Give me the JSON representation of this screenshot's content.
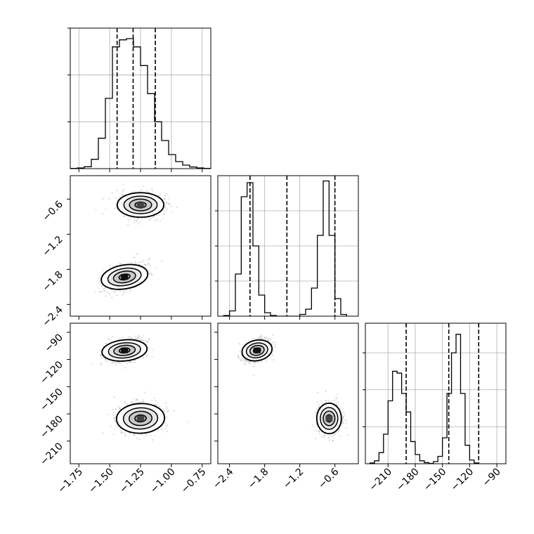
{
  "chart_data": {
    "type": "corner",
    "params": [
      {
        "ticks": [
          -1.75,
          -1.5,
          -1.25,
          -1.0,
          -0.75
        ],
        "tick_labels": [
          "−1.75",
          "−1.50",
          "−1.25",
          "−1.00",
          "−0.75"
        ],
        "range": [
          -1.82,
          -0.68
        ],
        "quantiles": [
          -1.44,
          -1.31,
          -1.13
        ],
        "hist": {
          "edges_from": -1.82,
          "bin_width": 0.057,
          "counts": [
            1,
            3,
            8,
            40,
            130,
            300,
            520,
            550,
            555,
            520,
            440,
            320,
            200,
            120,
            60,
            30,
            15,
            7,
            3,
            1
          ]
        },
        "hist_ymax": 600,
        "hist_grid": [
          200,
          400,
          600
        ]
      },
      {
        "ticks": [
          -2.4,
          -1.8,
          -1.2,
          -0.6
        ],
        "tick_labels": [
          "−2.4",
          "−1.8",
          "−1.2",
          "−0.6"
        ],
        "range": [
          -2.6,
          -0.2
        ],
        "quantiles": [
          -2.05,
          -1.42,
          -0.6
        ],
        "hist": {
          "edges_from": -2.5,
          "bin_width": 0.1,
          "counts": [
            2,
            15,
            120,
            340,
            380,
            200,
            60,
            10,
            2,
            0,
            0,
            0,
            0,
            5,
            20,
            80,
            230,
            385,
            230,
            50,
            5
          ]
        },
        "hist_ymax": 400,
        "hist_grid": [
          100,
          200,
          300
        ]
      },
      {
        "ticks": [
          -210,
          -180,
          -150,
          -120,
          -90
        ],
        "tick_labels": [
          "−210",
          "−180",
          "−150",
          "−120",
          "−90"
        ],
        "range": [
          -235,
          -80
        ],
        "quantiles": [
          -190,
          -143,
          -110
        ],
        "hist": {
          "edges_from": -230,
          "bin_width": 5,
          "counts": [
            2,
            8,
            30,
            80,
            170,
            250,
            245,
            190,
            140,
            60,
            25,
            8,
            3,
            1,
            6,
            20,
            70,
            190,
            300,
            350,
            190,
            50,
            10,
            2
          ]
        },
        "hist_ymax": 380,
        "hist_grid": [
          100,
          200,
          300
        ]
      }
    ],
    "clusters": [
      {
        "means": [
          -1.25,
          -0.7,
          -185
        ],
        "sds": [
          0.09,
          0.1,
          8
        ],
        "corr": [
          [
            1,
            0,
            0.1
          ],
          [
            0,
            1,
            0
          ],
          [
            0.1,
            0,
            1
          ]
        ]
      },
      {
        "means": [
          -1.38,
          -1.93,
          -110
        ],
        "sds": [
          0.08,
          0.11,
          6
        ],
        "corr": [
          [
            1,
            0.45,
            0.3
          ],
          [
            0.45,
            1,
            0.4
          ],
          [
            0.3,
            0.4,
            1
          ]
        ]
      }
    ],
    "grid": true,
    "quantile_line_style": "dashed"
  }
}
